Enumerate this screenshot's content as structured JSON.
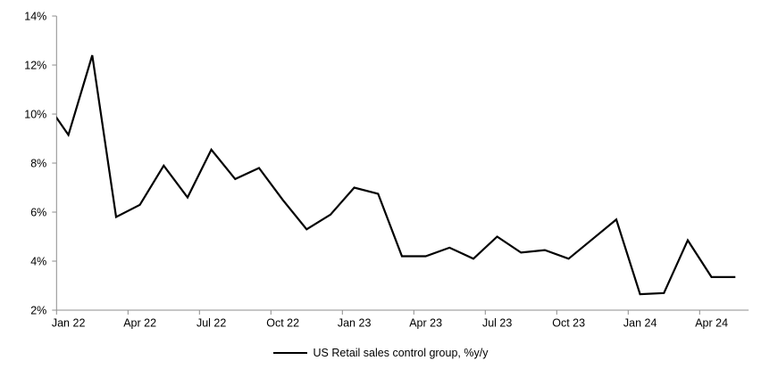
{
  "chart_data": {
    "type": "line",
    "title": "",
    "x": [
      "Dec 21",
      "Jan 22",
      "Feb 22",
      "Mar 22",
      "Apr 22",
      "May 22",
      "Jun 22",
      "Jul 22",
      "Aug 22",
      "Sep 22",
      "Oct 22",
      "Nov 22",
      "Dec 22",
      "Jan 23",
      "Feb 23",
      "Mar 23",
      "Apr 23",
      "May 23",
      "Jun 23",
      "Jul 23",
      "Aug 23",
      "Sep 23",
      "Oct 23",
      "Nov 23",
      "Dec 23",
      "Jan 24",
      "Feb 24",
      "Mar 24",
      "Apr 24",
      "May 24"
    ],
    "series": [
      {
        "name": "US Retail sales control group, %y/y",
        "color": "#000000",
        "values": [
          10.55,
          9.15,
          12.4,
          5.8,
          6.3,
          7.9,
          6.6,
          8.55,
          7.35,
          7.8,
          6.5,
          5.3,
          5.9,
          7.0,
          6.75,
          4.2,
          4.2,
          4.55,
          4.1,
          5.0,
          4.35,
          4.45,
          4.1,
          4.9,
          5.7,
          2.65,
          2.7,
          4.85,
          3.35,
          3.35
        ]
      }
    ],
    "ylim": [
      2,
      14
    ],
    "yticks": [
      {
        "v": 2,
        "label": "2%"
      },
      {
        "v": 4,
        "label": "4%"
      },
      {
        "v": 6,
        "label": "6%"
      },
      {
        "v": 8,
        "label": "8%"
      },
      {
        "v": 10,
        "label": "10%"
      },
      {
        "v": 12,
        "label": "12%"
      },
      {
        "v": 14,
        "label": "14%"
      }
    ],
    "xticks": [
      {
        "month_index": 1,
        "label": "Jan 22"
      },
      {
        "month_index": 4,
        "label": "Apr 22"
      },
      {
        "month_index": 7,
        "label": "Jul 22"
      },
      {
        "month_index": 10,
        "label": "Oct 22"
      },
      {
        "month_index": 13,
        "label": "Jan 23"
      },
      {
        "month_index": 16,
        "label": "Apr 23"
      },
      {
        "month_index": 19,
        "label": "Jul 23"
      },
      {
        "month_index": 22,
        "label": "Oct 23"
      },
      {
        "month_index": 25,
        "label": "Jan 24"
      },
      {
        "month_index": 28,
        "label": "Apr 24"
      }
    ],
    "legend": {
      "label": "US Retail sales control group, %y/y",
      "position": "bottom-center"
    },
    "grid": false,
    "axis_color": "#8E8E8E",
    "line_width": 2.2
  }
}
